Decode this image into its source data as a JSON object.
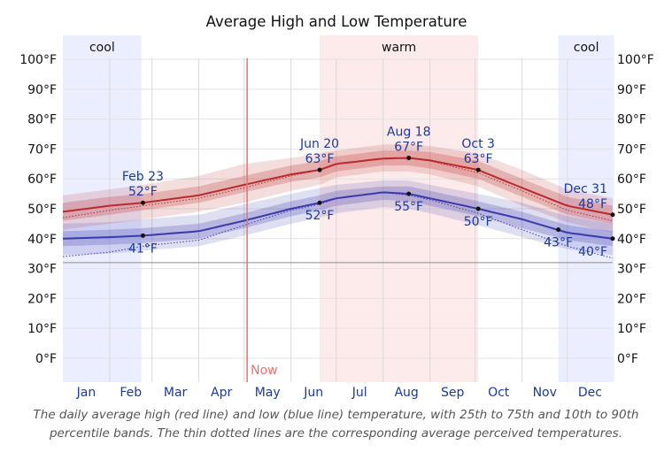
{
  "chart_data": {
    "type": "line",
    "title": "Average High and Low Temperature",
    "caption": "The daily average high (red line) and low (blue line) temperature, with 25th to 75th and 10th to 90th percentile bands. The thin dotted lines are the corresponding average perceived temperatures.",
    "months": [
      "Jan",
      "Feb",
      "Mar",
      "Apr",
      "May",
      "Jun",
      "Jul",
      "Aug",
      "Sep",
      "Oct",
      "Nov",
      "Dec"
    ],
    "y_ticks": [
      "0°F",
      "10°F",
      "20°F",
      "30°F",
      "40°F",
      "50°F",
      "60°F",
      "70°F",
      "80°F",
      "90°F",
      "100°F"
    ],
    "ylim": [
      -8,
      108
    ],
    "seasons": [
      {
        "label": "cool",
        "start_day": 1,
        "end_day": 53,
        "color": "#ebeeff"
      },
      {
        "label": "warm",
        "start_day": 171,
        "end_day": 276,
        "color": "#fdeaea"
      },
      {
        "label": "cool",
        "start_day": 329,
        "end_day": 366,
        "color": "#ebeeff"
      }
    ],
    "now": {
      "label": "Now",
      "day": 123
    },
    "reference_line_value": 32,
    "series": [
      {
        "name": "high",
        "color": "#b92b2b",
        "x": [
          1,
          32,
          54,
          91,
          121,
          152,
          171,
          182,
          213,
          230,
          244,
          276,
          305,
          335,
          365
        ],
        "values": [
          49,
          51,
          52,
          54.5,
          58,
          61.5,
          63,
          65,
          66.8,
          67,
          66.2,
          63,
          57,
          51,
          48
        ],
        "band50": [
          [
            46,
            52
          ],
          [
            48,
            54
          ],
          [
            49.5,
            55
          ],
          [
            52,
            57.5
          ],
          [
            55.5,
            61
          ],
          [
            59,
            64.5
          ],
          [
            60.5,
            66
          ],
          [
            62.5,
            67.5
          ],
          [
            64.5,
            69.5
          ],
          [
            64.5,
            69.5
          ],
          [
            63.5,
            69
          ],
          [
            60,
            66
          ],
          [
            54,
            60
          ],
          [
            48,
            54
          ],
          [
            45,
            51
          ]
        ],
        "band80": [
          [
            43,
            54.5
          ],
          [
            45,
            56.5
          ],
          [
            46.5,
            58
          ],
          [
            49,
            61
          ],
          [
            52,
            65
          ],
          [
            56,
            67
          ],
          [
            58,
            68.5
          ],
          [
            60.5,
            69.5
          ],
          [
            62.5,
            71.5
          ],
          [
            62.5,
            71.5
          ],
          [
            61.5,
            71
          ],
          [
            57.5,
            68.5
          ],
          [
            51,
            63
          ],
          [
            45.5,
            56.5
          ],
          [
            42,
            53.5
          ]
        ],
        "perceived": [
          47,
          49.5,
          51,
          53.5,
          57,
          61,
          63,
          65,
          67,
          67,
          66,
          62,
          56,
          49.5,
          46
        ]
      },
      {
        "name": "low",
        "color": "#3a3aad",
        "x": [
          1,
          32,
          54,
          91,
          121,
          152,
          171,
          182,
          213,
          230,
          244,
          276,
          305,
          335,
          365
        ],
        "values": [
          40,
          40.5,
          41,
          42.5,
          46,
          50,
          52,
          53.5,
          55.5,
          55,
          53.5,
          50,
          46.5,
          42,
          40
        ],
        "band50": [
          [
            37.5,
            42.5
          ],
          [
            38,
            43
          ],
          [
            38.5,
            43.5
          ],
          [
            40,
            45
          ],
          [
            43.5,
            48.5
          ],
          [
            47.5,
            52.5
          ],
          [
            49.5,
            54.5
          ],
          [
            51,
            56
          ],
          [
            53,
            57.5
          ],
          [
            52.5,
            57.5
          ],
          [
            51,
            56
          ],
          [
            47.5,
            52.5
          ],
          [
            43.5,
            49
          ],
          [
            39.5,
            44.5
          ],
          [
            37.5,
            42.5
          ]
        ],
        "band80": [
          [
            34.5,
            45
          ],
          [
            35,
            45.5
          ],
          [
            36,
            46.5
          ],
          [
            37.5,
            48
          ],
          [
            41,
            51.5
          ],
          [
            45,
            55
          ],
          [
            47,
            57
          ],
          [
            48.5,
            58
          ],
          [
            50.5,
            59.5
          ],
          [
            50,
            59.5
          ],
          [
            48.5,
            58
          ],
          [
            44.5,
            55
          ],
          [
            40.5,
            52
          ],
          [
            36.5,
            47.5
          ],
          [
            34.5,
            45
          ]
        ],
        "perceived": [
          34,
          35.5,
          37.5,
          39.5,
          44.5,
          49.5,
          51.5,
          53.5,
          55.5,
          54.5,
          53,
          48.5,
          43,
          37.5,
          33.5
        ]
      }
    ],
    "annotations": [
      {
        "series": "high",
        "day": 54,
        "date": "Feb 23",
        "value": 52,
        "label": "52°F",
        "position": "above"
      },
      {
        "series": "low",
        "day": 54,
        "date": "",
        "value": 41,
        "label": "41°F",
        "position": "below"
      },
      {
        "series": "high",
        "day": 171,
        "date": "Jun 20",
        "value": 63,
        "label": "63°F",
        "position": "above"
      },
      {
        "series": "low",
        "day": 171,
        "date": "",
        "value": 52,
        "label": "52°F",
        "position": "below"
      },
      {
        "series": "high",
        "day": 230,
        "date": "Aug 18",
        "value": 67,
        "label": "67°F",
        "position": "above"
      },
      {
        "series": "low",
        "day": 230,
        "date": "",
        "value": 55,
        "label": "55°F",
        "position": "below"
      },
      {
        "series": "high",
        "day": 276,
        "date": "Oct 3",
        "value": 63,
        "label": "63°F",
        "position": "above"
      },
      {
        "series": "low",
        "day": 276,
        "date": "",
        "value": 50,
        "label": "50°F",
        "position": "below"
      },
      {
        "series": "low",
        "day": 329,
        "date": "",
        "value": 43,
        "label": "43°F",
        "position": "below"
      },
      {
        "series": "high",
        "day": 365,
        "date": "Dec 31",
        "value": 48,
        "label": "48°F",
        "position": "above"
      },
      {
        "series": "low",
        "day": 365,
        "date": "",
        "value": 40,
        "label": "40°F",
        "position": "below"
      }
    ]
  }
}
